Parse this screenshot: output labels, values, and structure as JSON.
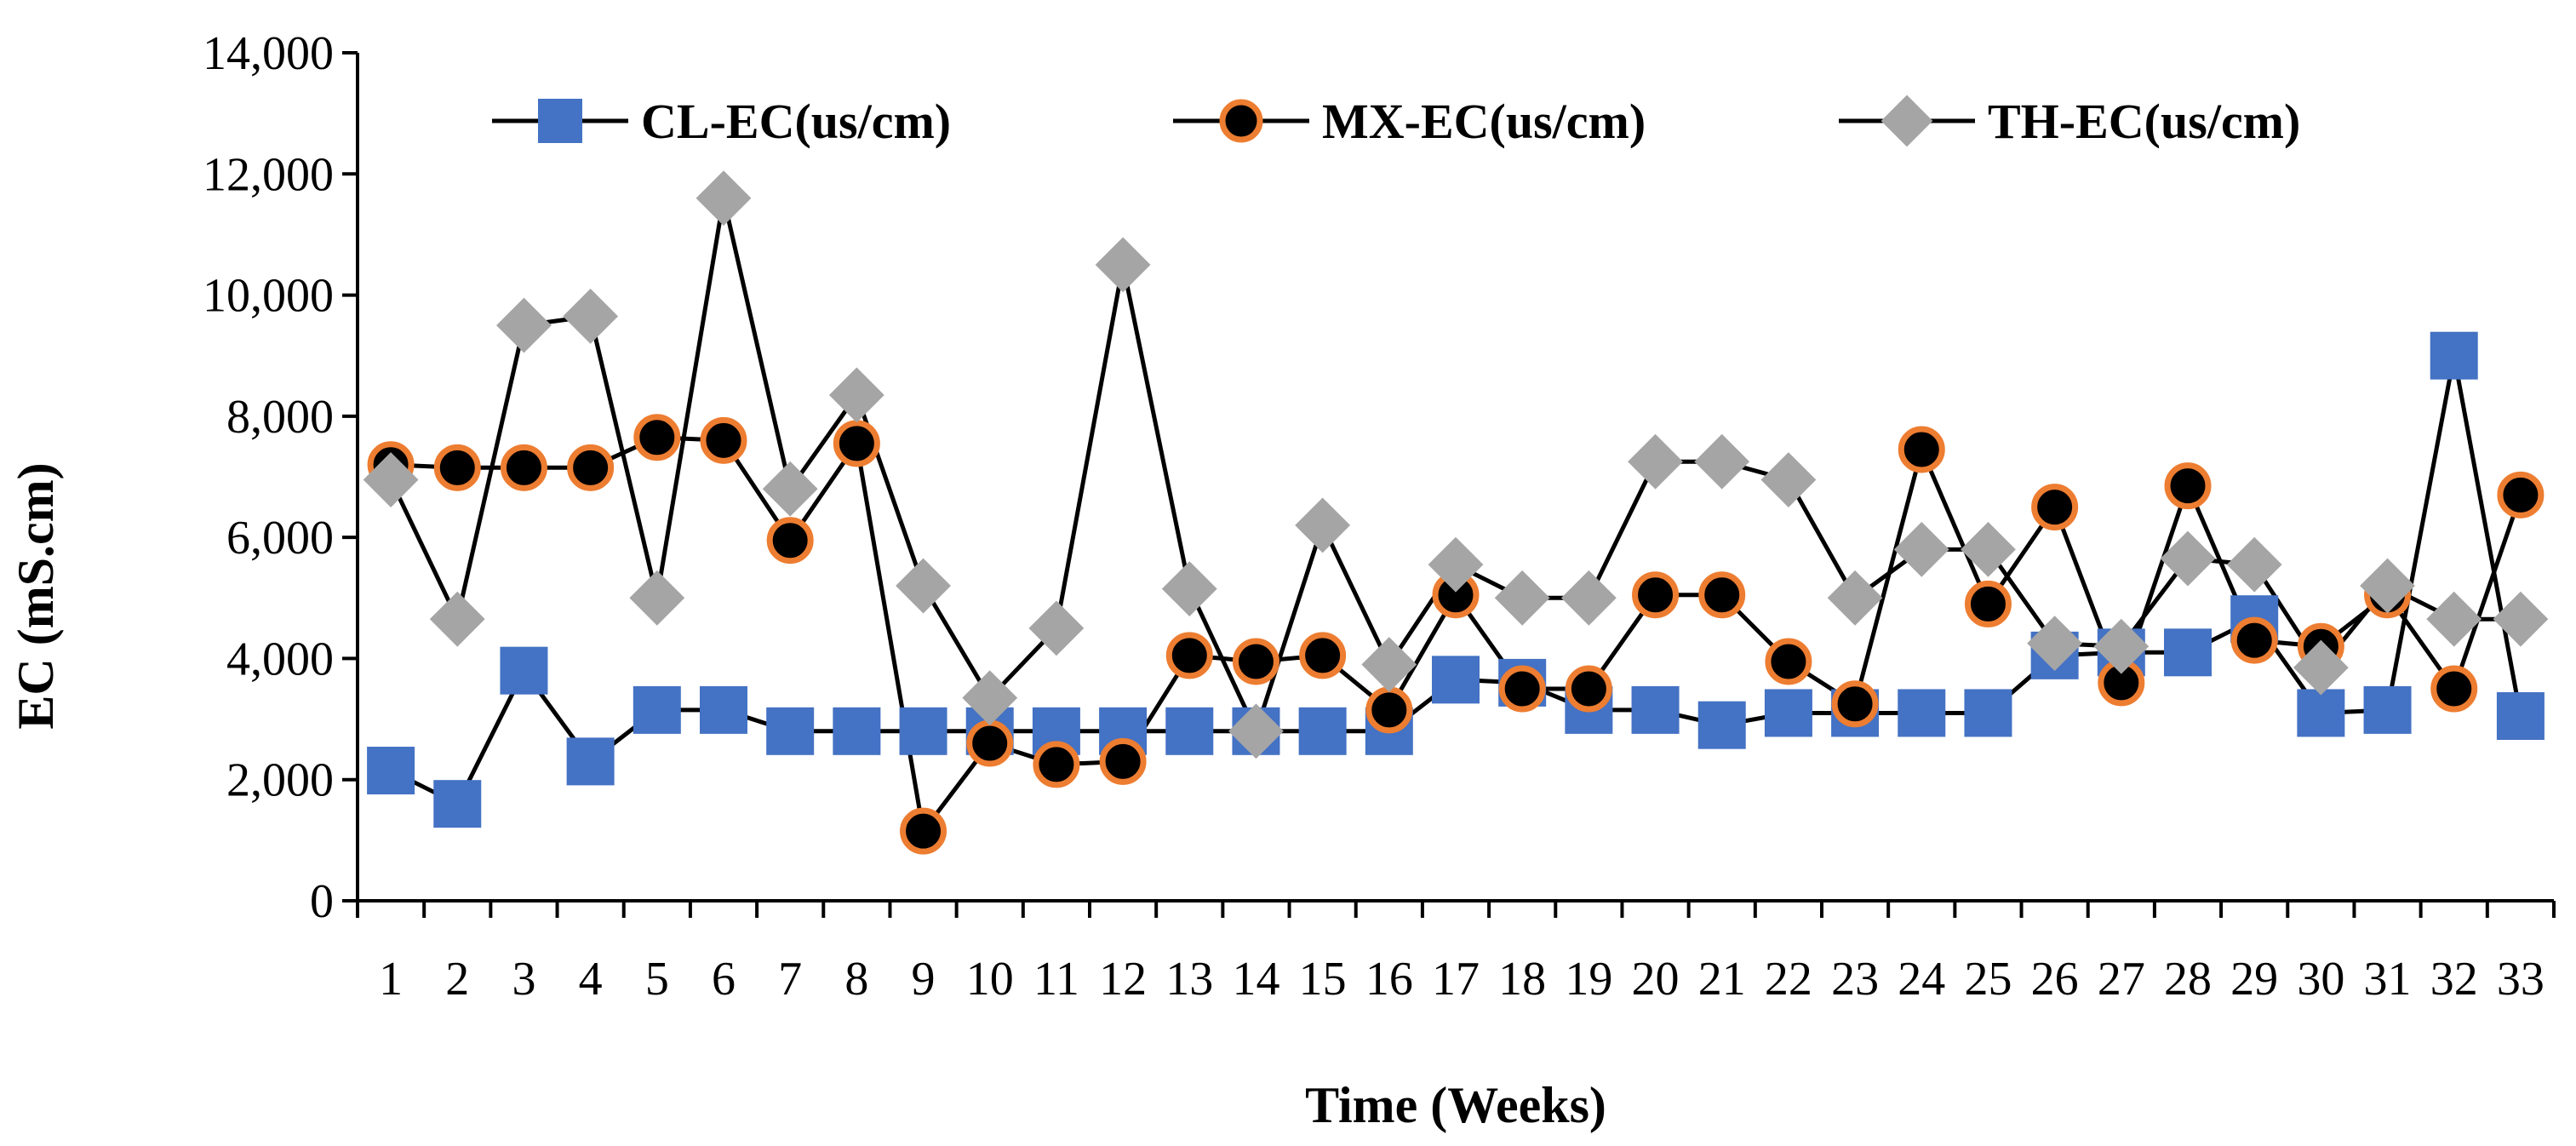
{
  "chart_data": {
    "type": "line",
    "title": "",
    "xlabel": "Time (Weeks)",
    "ylabel": "EC (mS.cm)",
    "ylim": [
      0,
      14000
    ],
    "yticks": [
      0,
      2000,
      4000,
      6000,
      8000,
      10000,
      12000,
      14000
    ],
    "ytick_labels": [
      "0",
      "2,000",
      "4,000",
      "6,000",
      "8,000",
      "10,000",
      "12,000",
      "14,000"
    ],
    "grid": false,
    "legend_position": "top",
    "categories": [
      "1",
      "2",
      "3",
      "4",
      "5",
      "6",
      "7",
      "8",
      "9",
      "10",
      "11",
      "12",
      "13",
      "14",
      "15",
      "16",
      "17",
      "18",
      "19",
      "20",
      "21",
      "22",
      "23",
      "24",
      "25",
      "26",
      "27",
      "28",
      "29",
      "30",
      "31",
      "32",
      "33"
    ],
    "series": [
      {
        "name": "CL-EC(us/cm)",
        "marker": "square",
        "color": "#4472C4",
        "line_color": "#000000",
        "values": [
          2150,
          1600,
          3800,
          2300,
          3150,
          3150,
          2800,
          2800,
          2800,
          2800,
          2800,
          2800,
          2800,
          2800,
          2800,
          2800,
          3650,
          3600,
          3150,
          3150,
          2900,
          3100,
          3100,
          3100,
          3100,
          4050,
          4100,
          4100,
          4650,
          3100,
          3150,
          9000,
          3050
        ]
      },
      {
        "name": "MX-EC(us/cm)",
        "marker": "circle",
        "color": "#000000",
        "edge_color": "#ED7D31",
        "line_color": "#000000",
        "values": [
          7200,
          7150,
          7150,
          7150,
          7650,
          7600,
          5950,
          7550,
          1150,
          2600,
          2250,
          2300,
          4050,
          3950,
          4050,
          3150,
          5050,
          3500,
          3500,
          5050,
          5050,
          3950,
          3250,
          7450,
          4900,
          6500,
          3600,
          6850,
          4300,
          4200,
          5050,
          3500,
          6700
        ]
      },
      {
        "name": "TH-EC(us/cm)",
        "marker": "diamond",
        "color": "#A5A5A5",
        "line_color": "#000000",
        "values": [
          6950,
          4650,
          9500,
          9650,
          5000,
          11600,
          6800,
          8350,
          5200,
          3350,
          4500,
          10500,
          5150,
          2800,
          6200,
          3900,
          5550,
          5000,
          5000,
          7250,
          7250,
          6950,
          5000,
          5800,
          5800,
          4250,
          4200,
          5650,
          5550,
          3850,
          5200,
          4650,
          4650
        ]
      }
    ]
  }
}
